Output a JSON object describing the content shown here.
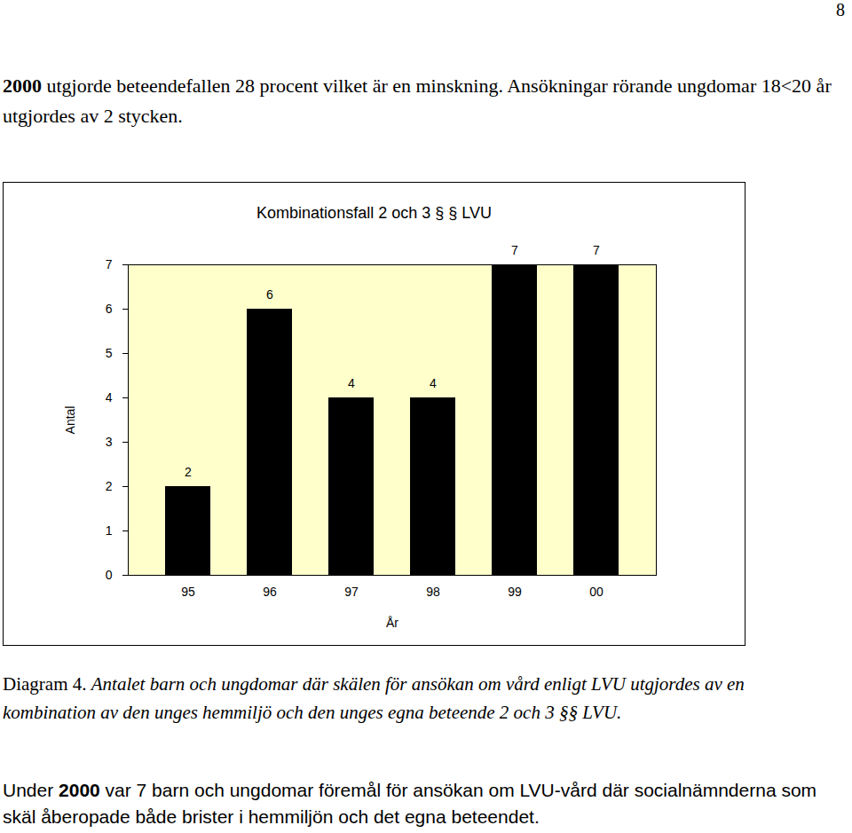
{
  "page_number": "8",
  "intro": [
    {
      "text": "2000",
      "bold": true
    },
    {
      "text": " utgjorde beteendefallen 28 procent vilket är en minskning. Ansökningar rörande ungdomar 18<20 år utgjordes av 2 stycken."
    }
  ],
  "chart_data": {
    "type": "bar",
    "title": "Kombinationsfall 2 och 3 § § LVU",
    "x_label": "År",
    "y_label": "Antal",
    "categories": [
      "95",
      "96",
      "97",
      "98",
      "99",
      "00"
    ],
    "values": [
      2,
      6,
      4,
      4,
      7,
      7
    ],
    "color": "#000000",
    "ylim": [
      0,
      7
    ],
    "yticks": [
      0,
      1,
      2,
      3,
      4,
      5,
      6,
      7
    ],
    "grid": false,
    "data_labels": true
  },
  "caption": [
    {
      "text": "Diagram 4. "
    },
    {
      "text": "Antalet barn och ungdomar där skälen för ansökan om vård enligt LVU utgjordes av en kombination av den unges hemmiljö och den unges egna beteende 2 och 3 §§ LVU.",
      "italic": true
    }
  ],
  "outro": [
    {
      "text": "Under "
    },
    {
      "text": "2000",
      "bold": true
    },
    {
      "text": " var 7 barn och ungdomar föremål för ansökan om LVU-vård där socialnämnderna som skäl åberopade både brister i hemmiljön och det egna beteendet."
    }
  ]
}
